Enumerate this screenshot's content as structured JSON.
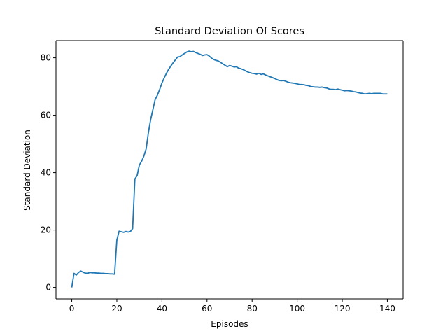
{
  "chart_data": {
    "type": "line",
    "title": "Standard Deviation Of Scores",
    "xlabel": "Episodes",
    "ylabel": "Standard Deviation",
    "xlim": [
      -7,
      147
    ],
    "ylim": [
      -4,
      86
    ],
    "xticks": [
      0,
      20,
      40,
      60,
      80,
      100,
      120,
      140
    ],
    "yticks": [
      0,
      20,
      40,
      60,
      80
    ],
    "grid": false,
    "series": [
      {
        "color": "#1f77b4",
        "x": [
          0,
          1,
          2,
          3,
          4,
          5,
          6,
          7,
          8,
          9,
          10,
          11,
          12,
          13,
          14,
          15,
          16,
          17,
          18,
          19,
          20,
          21,
          22,
          23,
          24,
          25,
          26,
          27,
          28,
          29,
          30,
          31,
          32,
          33,
          34,
          35,
          36,
          37,
          38,
          39,
          40,
          41,
          42,
          43,
          44,
          45,
          46,
          47,
          48,
          49,
          50,
          51,
          52,
          53,
          54,
          55,
          56,
          57,
          58,
          59,
          60,
          61,
          62,
          63,
          64,
          65,
          66,
          67,
          68,
          69,
          70,
          71,
          72,
          73,
          74,
          75,
          76,
          77,
          78,
          79,
          80,
          81,
          82,
          83,
          84,
          85,
          86,
          87,
          88,
          89,
          90,
          91,
          92,
          93,
          94,
          95,
          96,
          97,
          98,
          99,
          100,
          101,
          102,
          103,
          104,
          105,
          106,
          107,
          108,
          109,
          110,
          111,
          112,
          113,
          114,
          115,
          116,
          117,
          118,
          119,
          120,
          121,
          122,
          123,
          124,
          125,
          126,
          127,
          128,
          129,
          130,
          131,
          132,
          133,
          134,
          135,
          136,
          137,
          138,
          139,
          140
        ],
        "y": [
          0,
          4.9,
          4.3,
          5.2,
          5.7,
          5.3,
          5.0,
          4.9,
          5.2,
          5.1,
          5.1,
          5.0,
          5.0,
          4.9,
          4.9,
          4.8,
          4.8,
          4.7,
          4.7,
          4.6,
          16.5,
          19.6,
          19.4,
          19.2,
          19.5,
          19.3,
          19.5,
          20.5,
          37.8,
          39.0,
          42.7,
          44.0,
          45.8,
          48.3,
          54.0,
          58.5,
          62.0,
          65.5,
          67.0,
          69.0,
          71.2,
          73.0,
          74.6,
          76.0,
          77.2,
          78.3,
          79.3,
          80.3,
          80.4,
          81.0,
          81.5,
          82.0,
          82.3,
          82.1,
          82.2,
          81.8,
          81.5,
          81.2,
          80.8,
          81.0,
          81.1,
          80.6,
          79.9,
          79.4,
          79.1,
          78.9,
          78.4,
          77.9,
          77.4,
          76.9,
          77.3,
          77.1,
          76.8,
          76.9,
          76.4,
          76.2,
          75.9,
          75.5,
          75.1,
          74.8,
          74.6,
          74.5,
          74.3,
          74.6,
          74.2,
          74.4,
          74.0,
          73.7,
          73.4,
          73.1,
          72.8,
          72.4,
          72.1,
          72.0,
          72.1,
          71.8,
          71.5,
          71.3,
          71.2,
          71.1,
          70.9,
          70.7,
          70.7,
          70.6,
          70.4,
          70.3,
          70.0,
          69.9,
          69.8,
          69.8,
          69.7,
          69.8,
          69.6,
          69.5,
          69.2,
          69.0,
          69.0,
          68.9,
          69.1,
          68.9,
          68.7,
          68.5,
          68.6,
          68.5,
          68.4,
          68.2,
          68.1,
          67.9,
          67.7,
          67.6,
          67.4,
          67.5,
          67.6,
          67.5,
          67.6,
          67.6,
          67.6,
          67.6,
          67.4,
          67.4,
          67.4
        ]
      }
    ]
  }
}
